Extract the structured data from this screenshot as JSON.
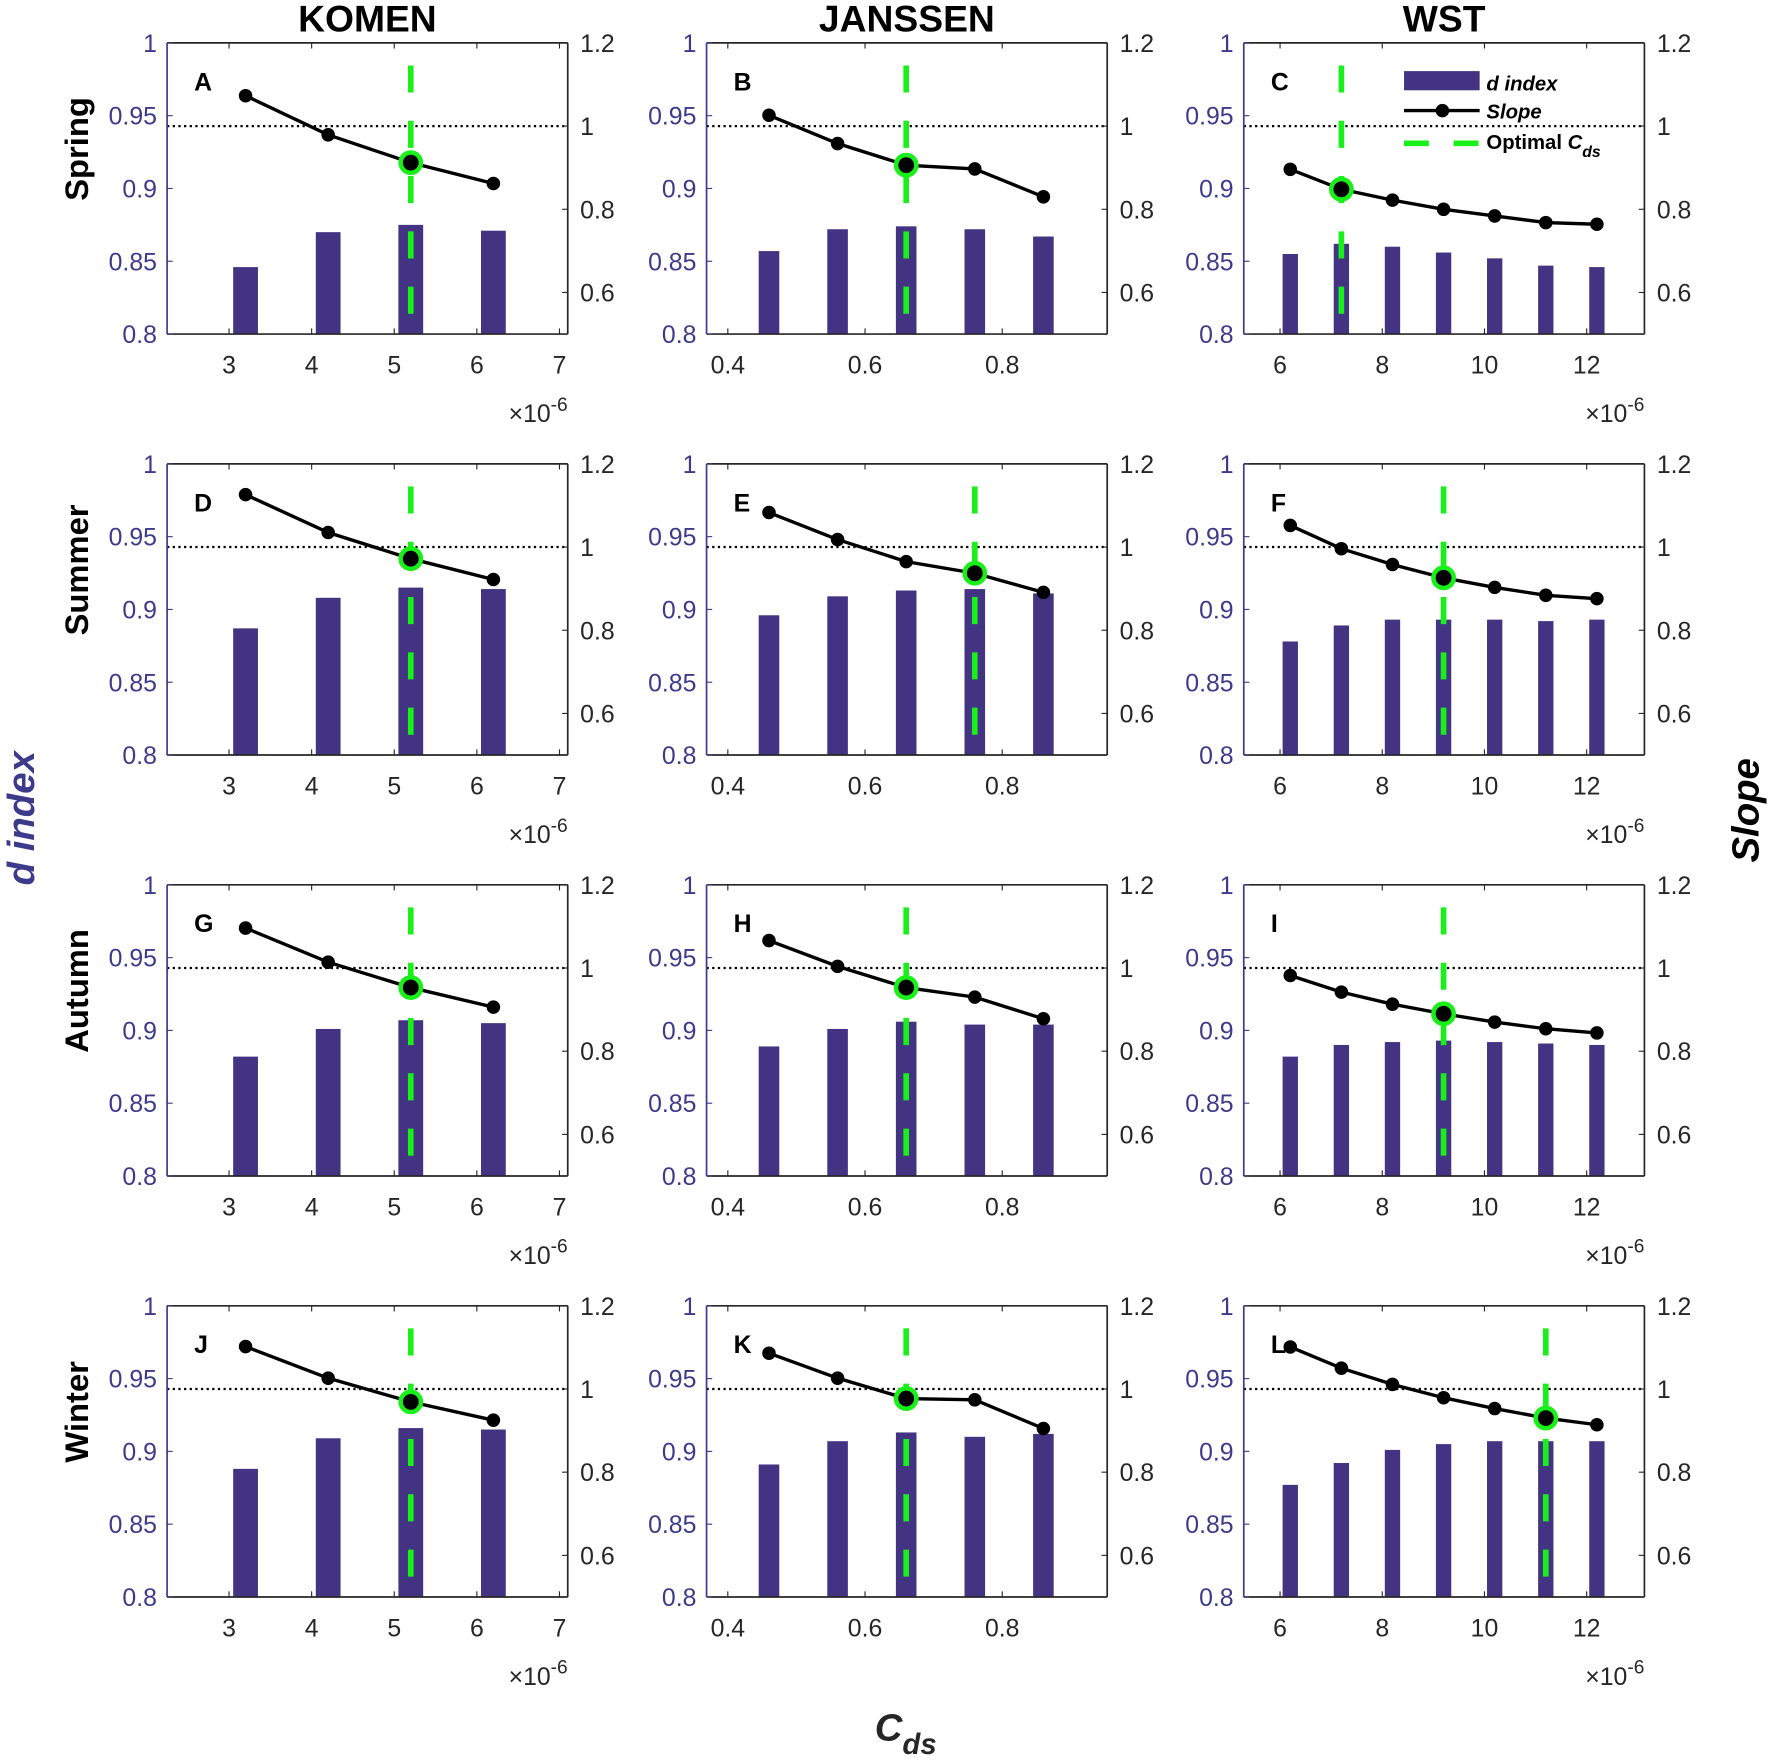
{
  "figure": {
    "column_titles": [
      "KOMEN",
      "JANSSEN",
      "WST"
    ],
    "row_labels": [
      "Spring",
      "Summer",
      "Autumn",
      "Winter"
    ],
    "y_axis_label": "d index",
    "y2_axis_label": "Slope",
    "x_axis_label": {
      "main": "C",
      "sub": "ds"
    },
    "exponent_label": {
      "base": "×10",
      "power": "-6"
    },
    "legend": {
      "d_index": "d index",
      "slope": "Slope",
      "optimal": {
        "text": "Optimal ",
        "main": "C",
        "sub": "ds"
      }
    },
    "colors": {
      "bar": "#433483",
      "slope": "#000000",
      "optimal": "#19f019",
      "left_axis": "#3d3a8c"
    }
  },
  "schemes": {
    "KOMEN": {
      "xlim": [
        2.25,
        7.1
      ],
      "xticks": [
        3,
        4,
        5,
        6,
        7
      ],
      "xtick_labels": [
        "3",
        "4",
        "5",
        "6",
        "7"
      ],
      "bar_width": 0.3,
      "exponent": true
    },
    "JANSSEN": {
      "xlim": [
        0.369,
        0.953
      ],
      "xticks": [
        0.4,
        0.6,
        0.8
      ],
      "xtick_labels": [
        "0.4",
        "0.6",
        "0.8"
      ],
      "bar_width": 0.03,
      "exponent": false
    },
    "WST": {
      "xlim": [
        5.29,
        13.13
      ],
      "xticks": [
        6,
        8,
        10,
        12
      ],
      "xtick_labels": [
        "6",
        "8",
        "10",
        "12"
      ],
      "bar_width": 0.3,
      "exponent": true
    }
  },
  "axes": {
    "ylim": [
      0.8,
      1.0
    ],
    "yticks": [
      0.8,
      0.85,
      0.9,
      0.95,
      1
    ],
    "ytick_labels": [
      "0.8",
      "0.85",
      "0.9",
      "0.95",
      "1"
    ],
    "y2lim": [
      0.5,
      1.2
    ],
    "y2ticks": [
      0.6,
      0.8,
      1,
      1.2
    ],
    "y2tick_labels": [
      "0.6",
      "0.8",
      "1",
      "1.2"
    ],
    "reference_slope": 1.0
  },
  "chart_data": [
    {
      "type": "bar+line",
      "label": "A",
      "scheme": "KOMEN",
      "season": "Spring",
      "x": [
        3.2,
        4.2,
        5.2,
        6.2
      ],
      "d_index": [
        0.846,
        0.87,
        0.875,
        0.871
      ],
      "slope": [
        1.073,
        0.979,
        0.912,
        0.862
      ],
      "optimal_x": 5.2
    },
    {
      "type": "bar+line",
      "label": "B",
      "scheme": "JANSSEN",
      "season": "Spring",
      "x": [
        0.46,
        0.56,
        0.66,
        0.76,
        0.86
      ],
      "d_index": [
        0.857,
        0.872,
        0.874,
        0.872,
        0.867
      ],
      "slope": [
        1.026,
        0.958,
        0.906,
        0.897,
        0.83
      ],
      "optimal_x": 0.66
    },
    {
      "type": "bar+line",
      "label": "C",
      "scheme": "WST",
      "season": "Spring",
      "x": [
        6.2,
        7.2,
        8.2,
        9.2,
        10.2,
        11.2,
        12.2
      ],
      "d_index": [
        0.855,
        0.862,
        0.86,
        0.856,
        0.852,
        0.847,
        0.846
      ],
      "slope": [
        0.896,
        0.848,
        0.822,
        0.8,
        0.784,
        0.768,
        0.764
      ],
      "optimal_x": 7.2,
      "legend": "top-right"
    },
    {
      "type": "bar+line",
      "label": "D",
      "scheme": "KOMEN",
      "season": "Summer",
      "x": [
        3.2,
        4.2,
        5.2,
        6.2
      ],
      "d_index": [
        0.887,
        0.908,
        0.915,
        0.914
      ],
      "slope": [
        1.126,
        1.035,
        0.972,
        0.922
      ],
      "optimal_x": 5.2
    },
    {
      "type": "bar+line",
      "label": "E",
      "scheme": "JANSSEN",
      "season": "Summer",
      "x": [
        0.46,
        0.56,
        0.66,
        0.76,
        0.86
      ],
      "d_index": [
        0.896,
        0.909,
        0.913,
        0.914,
        0.911
      ],
      "slope": [
        1.083,
        1.018,
        0.965,
        0.937,
        0.891
      ],
      "optimal_x": 0.76
    },
    {
      "type": "bar+line",
      "label": "F",
      "scheme": "WST",
      "season": "Summer",
      "x": [
        6.2,
        7.2,
        8.2,
        9.2,
        10.2,
        11.2,
        12.2
      ],
      "d_index": [
        0.878,
        0.889,
        0.893,
        0.893,
        0.893,
        0.892,
        0.893
      ],
      "slope": [
        1.052,
        0.996,
        0.958,
        0.926,
        0.903,
        0.884,
        0.876
      ],
      "optimal_x": 9.2
    },
    {
      "type": "bar+line",
      "label": "G",
      "scheme": "KOMEN",
      "season": "Autumn",
      "x": [
        3.2,
        4.2,
        5.2,
        6.2
      ],
      "d_index": [
        0.882,
        0.901,
        0.907,
        0.905
      ],
      "slope": [
        1.096,
        1.014,
        0.953,
        0.906
      ],
      "optimal_x": 5.2
    },
    {
      "type": "bar+line",
      "label": "H",
      "scheme": "JANSSEN",
      "season": "Autumn",
      "x": [
        0.46,
        0.56,
        0.66,
        0.76,
        0.86
      ],
      "d_index": [
        0.889,
        0.901,
        0.906,
        0.904,
        0.904
      ],
      "slope": [
        1.066,
        1.004,
        0.953,
        0.93,
        0.878
      ],
      "optimal_x": 0.66
    },
    {
      "type": "bar+line",
      "label": "I",
      "scheme": "WST",
      "season": "Autumn",
      "x": [
        6.2,
        7.2,
        8.2,
        9.2,
        10.2,
        11.2,
        12.2
      ],
      "d_index": [
        0.882,
        0.89,
        0.892,
        0.893,
        0.892,
        0.891,
        0.89
      ],
      "slope": [
        0.982,
        0.942,
        0.913,
        0.89,
        0.87,
        0.854,
        0.844
      ],
      "optimal_x": 9.2
    },
    {
      "type": "bar+line",
      "label": "J",
      "scheme": "KOMEN",
      "season": "Winter",
      "x": [
        3.2,
        4.2,
        5.2,
        6.2
      ],
      "d_index": [
        0.888,
        0.909,
        0.916,
        0.915
      ],
      "slope": [
        1.102,
        1.026,
        0.969,
        0.925
      ],
      "optimal_x": 5.2
    },
    {
      "type": "bar+line",
      "label": "K",
      "scheme": "JANSSEN",
      "season": "Winter",
      "x": [
        0.46,
        0.56,
        0.66,
        0.76,
        0.86
      ],
      "d_index": [
        0.891,
        0.907,
        0.913,
        0.91,
        0.912
      ],
      "slope": [
        1.086,
        1.026,
        0.977,
        0.974,
        0.905
      ],
      "optimal_x": 0.66
    },
    {
      "type": "bar+line",
      "label": "L",
      "scheme": "WST",
      "season": "Winter",
      "x": [
        6.2,
        7.2,
        8.2,
        9.2,
        10.2,
        11.2,
        12.2
      ],
      "d_index": [
        0.877,
        0.892,
        0.901,
        0.905,
        0.907,
        0.907,
        0.907
      ],
      "slope": [
        1.101,
        1.05,
        1.011,
        0.979,
        0.953,
        0.93,
        0.914
      ],
      "optimal_x": 11.2
    }
  ]
}
